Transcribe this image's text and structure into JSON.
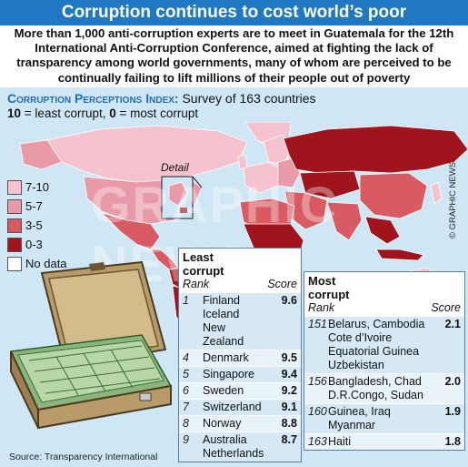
{
  "title": "Corruption continues to cost world’s poor",
  "intro": "More than 1,000 anti-corruption experts are to meet in Guatemala for the 12th International Anti-Corruption Conference, aimed at fighting the lack of transparency among world governments, many of whom are perceived to be continually failing to lift millions of their people out of poverty",
  "index": {
    "title": "Corruption Perceptions Index:",
    "survey": "Survey of 163 countries",
    "scale_ten": "10",
    "scale_ten_text": "= least corrupt,",
    "scale_zero": "0",
    "scale_zero_text": "= most corrupt"
  },
  "map": {
    "detail_label": "Detail"
  },
  "credit": "© GRAPHIC NEWS",
  "watermark": "GRAPHIC NEWS",
  "legend": [
    {
      "label": "7-10",
      "color": "#f4c3cf"
    },
    {
      "label": "5-7",
      "color": "#e99aa8"
    },
    {
      "label": "3-5",
      "color": "#d85a63"
    },
    {
      "label": "0-3",
      "color": "#a0141e"
    },
    {
      "label": "No data",
      "color": "#ffffff"
    }
  ],
  "least_table": {
    "heading_line1": "Least",
    "heading_line2": "corrupt",
    "rank_header": "Rank",
    "score_header": "Score"
  },
  "most_table": {
    "heading_line1": "Most",
    "heading_line2": "corrupt",
    "rank_header": "Rank",
    "score_header": "Score"
  },
  "source": "Source: Transparency International",
  "chart_data": {
    "type": "table",
    "least_corrupt": [
      {
        "rank": "1",
        "countries": [
          "Finland",
          "Iceland",
          "New Zealand"
        ],
        "score": "9.6"
      },
      {
        "rank": "4",
        "countries": [
          "Denmark"
        ],
        "score": "9.5"
      },
      {
        "rank": "5",
        "countries": [
          "Singapore"
        ],
        "score": "9.4"
      },
      {
        "rank": "6",
        "countries": [
          "Sweden"
        ],
        "score": "9.2"
      },
      {
        "rank": "7",
        "countries": [
          "Switzerland"
        ],
        "score": "9.1"
      },
      {
        "rank": "8",
        "countries": [
          "Norway"
        ],
        "score": "8.8"
      },
      {
        "rank": "9",
        "countries": [
          "Australia",
          "Netherlands"
        ],
        "score": "8.7"
      }
    ],
    "most_corrupt": [
      {
        "rank": "151",
        "countries": [
          "Belarus, Cambodia",
          "Cote d’Ivoire",
          "Equatorial Guinea",
          "Uzbekistan"
        ],
        "score": "2.1"
      },
      {
        "rank": "156",
        "countries": [
          "Bangladesh, Chad",
          "D.R.Congo, Sudan"
        ],
        "score": "2.0"
      },
      {
        "rank": "160",
        "countries": [
          "Guinea, Iraq",
          "Myanmar"
        ],
        "score": "1.9"
      },
      {
        "rank": "163",
        "countries": [
          "Haiti"
        ],
        "score": "1.8"
      }
    ]
  }
}
